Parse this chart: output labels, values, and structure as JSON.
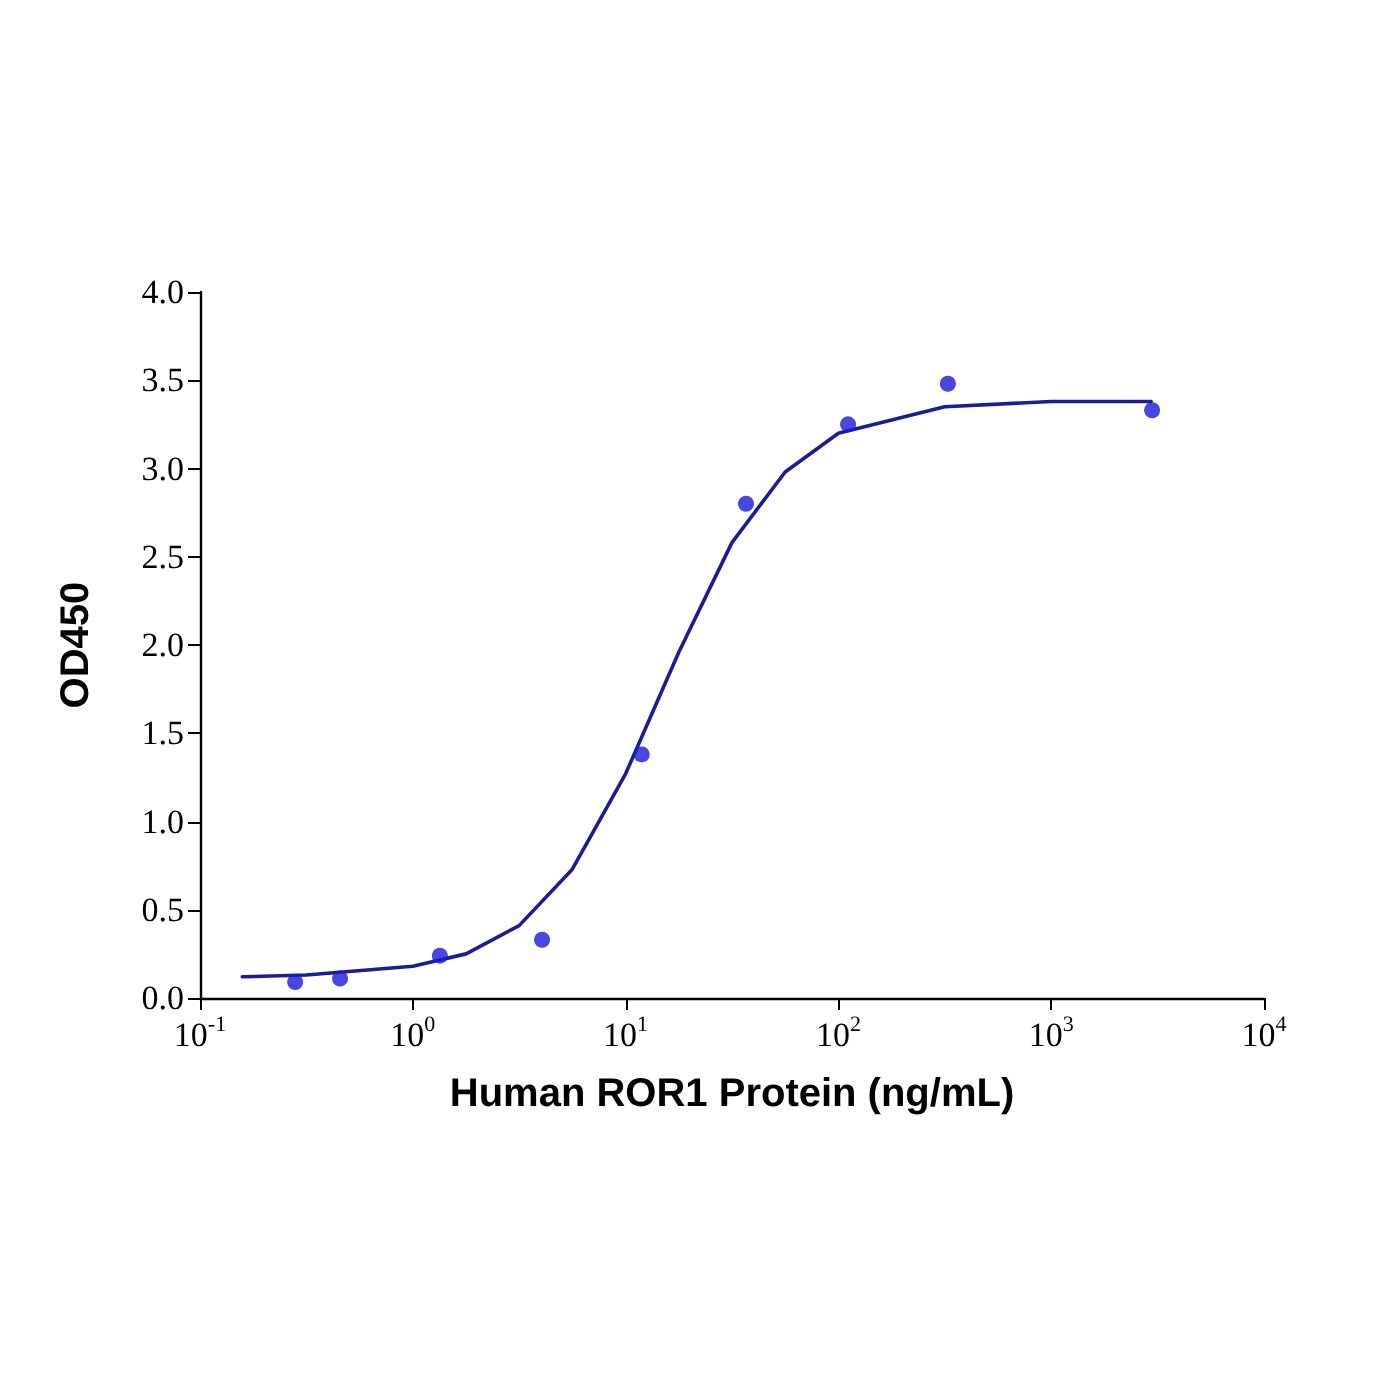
{
  "chart_data": {
    "type": "scatter",
    "xlabel": "Human ROR1 Protein (ng/mL)",
    "ylabel": "OD450",
    "log": "x",
    "marker": "circle",
    "grid": false,
    "xlim": [
      0.1,
      10000
    ],
    "xticks": [
      {
        "value": 0.1,
        "label": "10$^{-1}$"
      },
      {
        "value": 1,
        "label": "10$^{0}$"
      },
      {
        "value": 10,
        "label": "10$^{1}$"
      },
      {
        "value": 100,
        "label": "10$^{2}$"
      },
      {
        "value": 1000,
        "label": "10$^{3}$"
      },
      {
        "value": 10000,
        "label": "10$^{4}$"
      }
    ],
    "ylim": [
      0,
      4
    ],
    "yticks": [
      {
        "value": 0,
        "label": "0.0"
      },
      {
        "value": 0.5,
        "label": "0.5"
      },
      {
        "value": 1,
        "label": "1.0"
      },
      {
        "value": 1.5,
        "label": "1.5"
      },
      {
        "value": 2,
        "label": "2.0"
      },
      {
        "value": 2.5,
        "label": "2.5"
      },
      {
        "value": 3,
        "label": "3.0"
      },
      {
        "value": 3.5,
        "label": "3.5"
      },
      {
        "value": 4,
        "label": "4.0"
      }
    ],
    "series": [
      {
        "type": "scatter",
        "color": "#1a1ad6",
        "x": [
          0.28,
          0.455,
          1.34,
          4.05,
          11.9,
          36.8,
          111,
          327,
          2980
        ],
        "values": [
          0.09,
          0.11,
          0.24,
          0.33,
          1.38,
          2.8,
          3.25,
          3.48,
          3.33
        ]
      },
      {
        "type": "line",
        "color": "#1c1c96",
        "marker": "none",
        "line_style": "solid",
        "x": [
          0.158,
          0.316,
          1,
          1.78,
          3.16,
          5.62,
          10,
          17.8,
          31.6,
          56.2,
          100,
          316,
          1000,
          2950
        ],
        "values": [
          0.12,
          0.13,
          0.18,
          0.25,
          0.41,
          0.73,
          1.27,
          1.96,
          2.58,
          2.98,
          3.2,
          3.35,
          3.38,
          3.38
        ]
      }
    ]
  }
}
